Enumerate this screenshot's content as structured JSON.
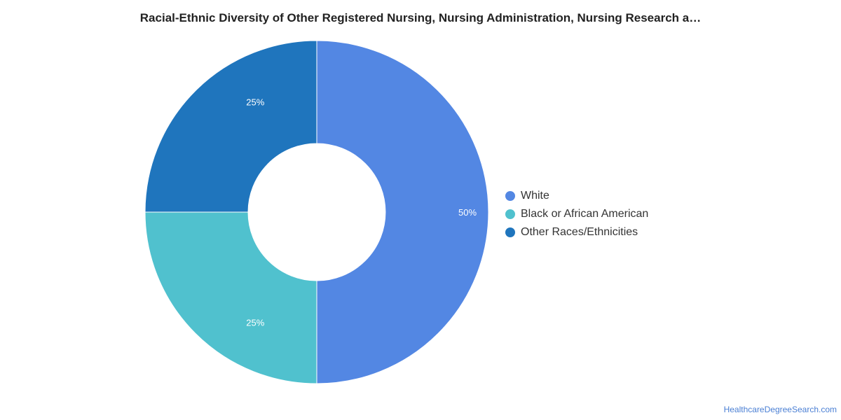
{
  "chart_data": {
    "type": "pie",
    "title": "Racial-Ethnic Diversity of Other Registered Nursing, Nursing Administration, Nursing Research a…",
    "donut": true,
    "categories": [
      "White",
      "Black or African American",
      "Other Races/Ethnicities"
    ],
    "values": [
      50,
      25,
      25
    ],
    "value_labels": [
      "50%",
      "25%",
      "25%"
    ],
    "colors": [
      "#5387e3",
      "#50c1ce",
      "#1f75bd"
    ],
    "legend_position": "right"
  },
  "footer": {
    "source": "HealthcareDegreeSearch.com"
  }
}
